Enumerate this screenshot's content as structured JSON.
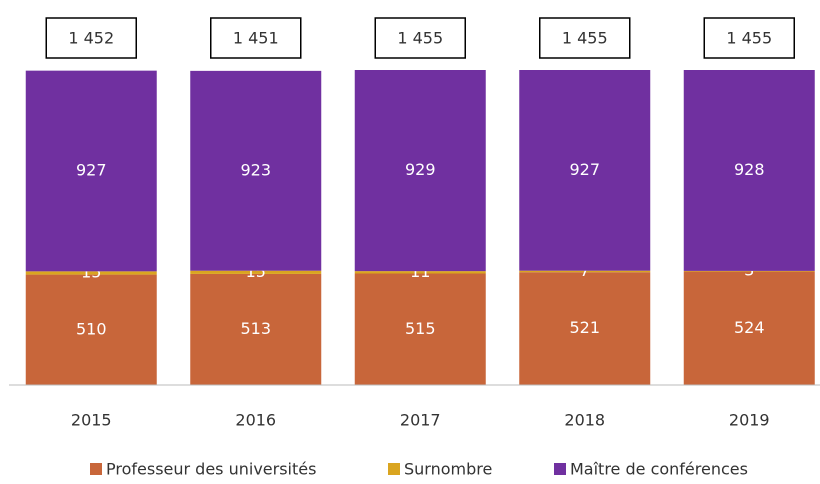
{
  "chart_data": {
    "type": "stacked_bar",
    "categories": [
      "2015",
      "2016",
      "2017",
      "2018",
      "2019"
    ],
    "series": [
      {
        "name": "Professeur des universités",
        "color": "#c8663a",
        "values": [
          510,
          513,
          515,
          521,
          524
        ]
      },
      {
        "name": "Surnombre",
        "color": "#daa520",
        "values": [
          15,
          15,
          11,
          7,
          3
        ]
      },
      {
        "name": "Maître de conférences",
        "color": "#7030a0",
        "values": [
          927,
          923,
          929,
          927,
          928
        ]
      }
    ],
    "totals": [
      1452,
      1451,
      1455,
      1455,
      1455
    ],
    "total_labels": [
      "1 452",
      "1 451",
      "1 455",
      "1 455",
      "1 455"
    ]
  }
}
